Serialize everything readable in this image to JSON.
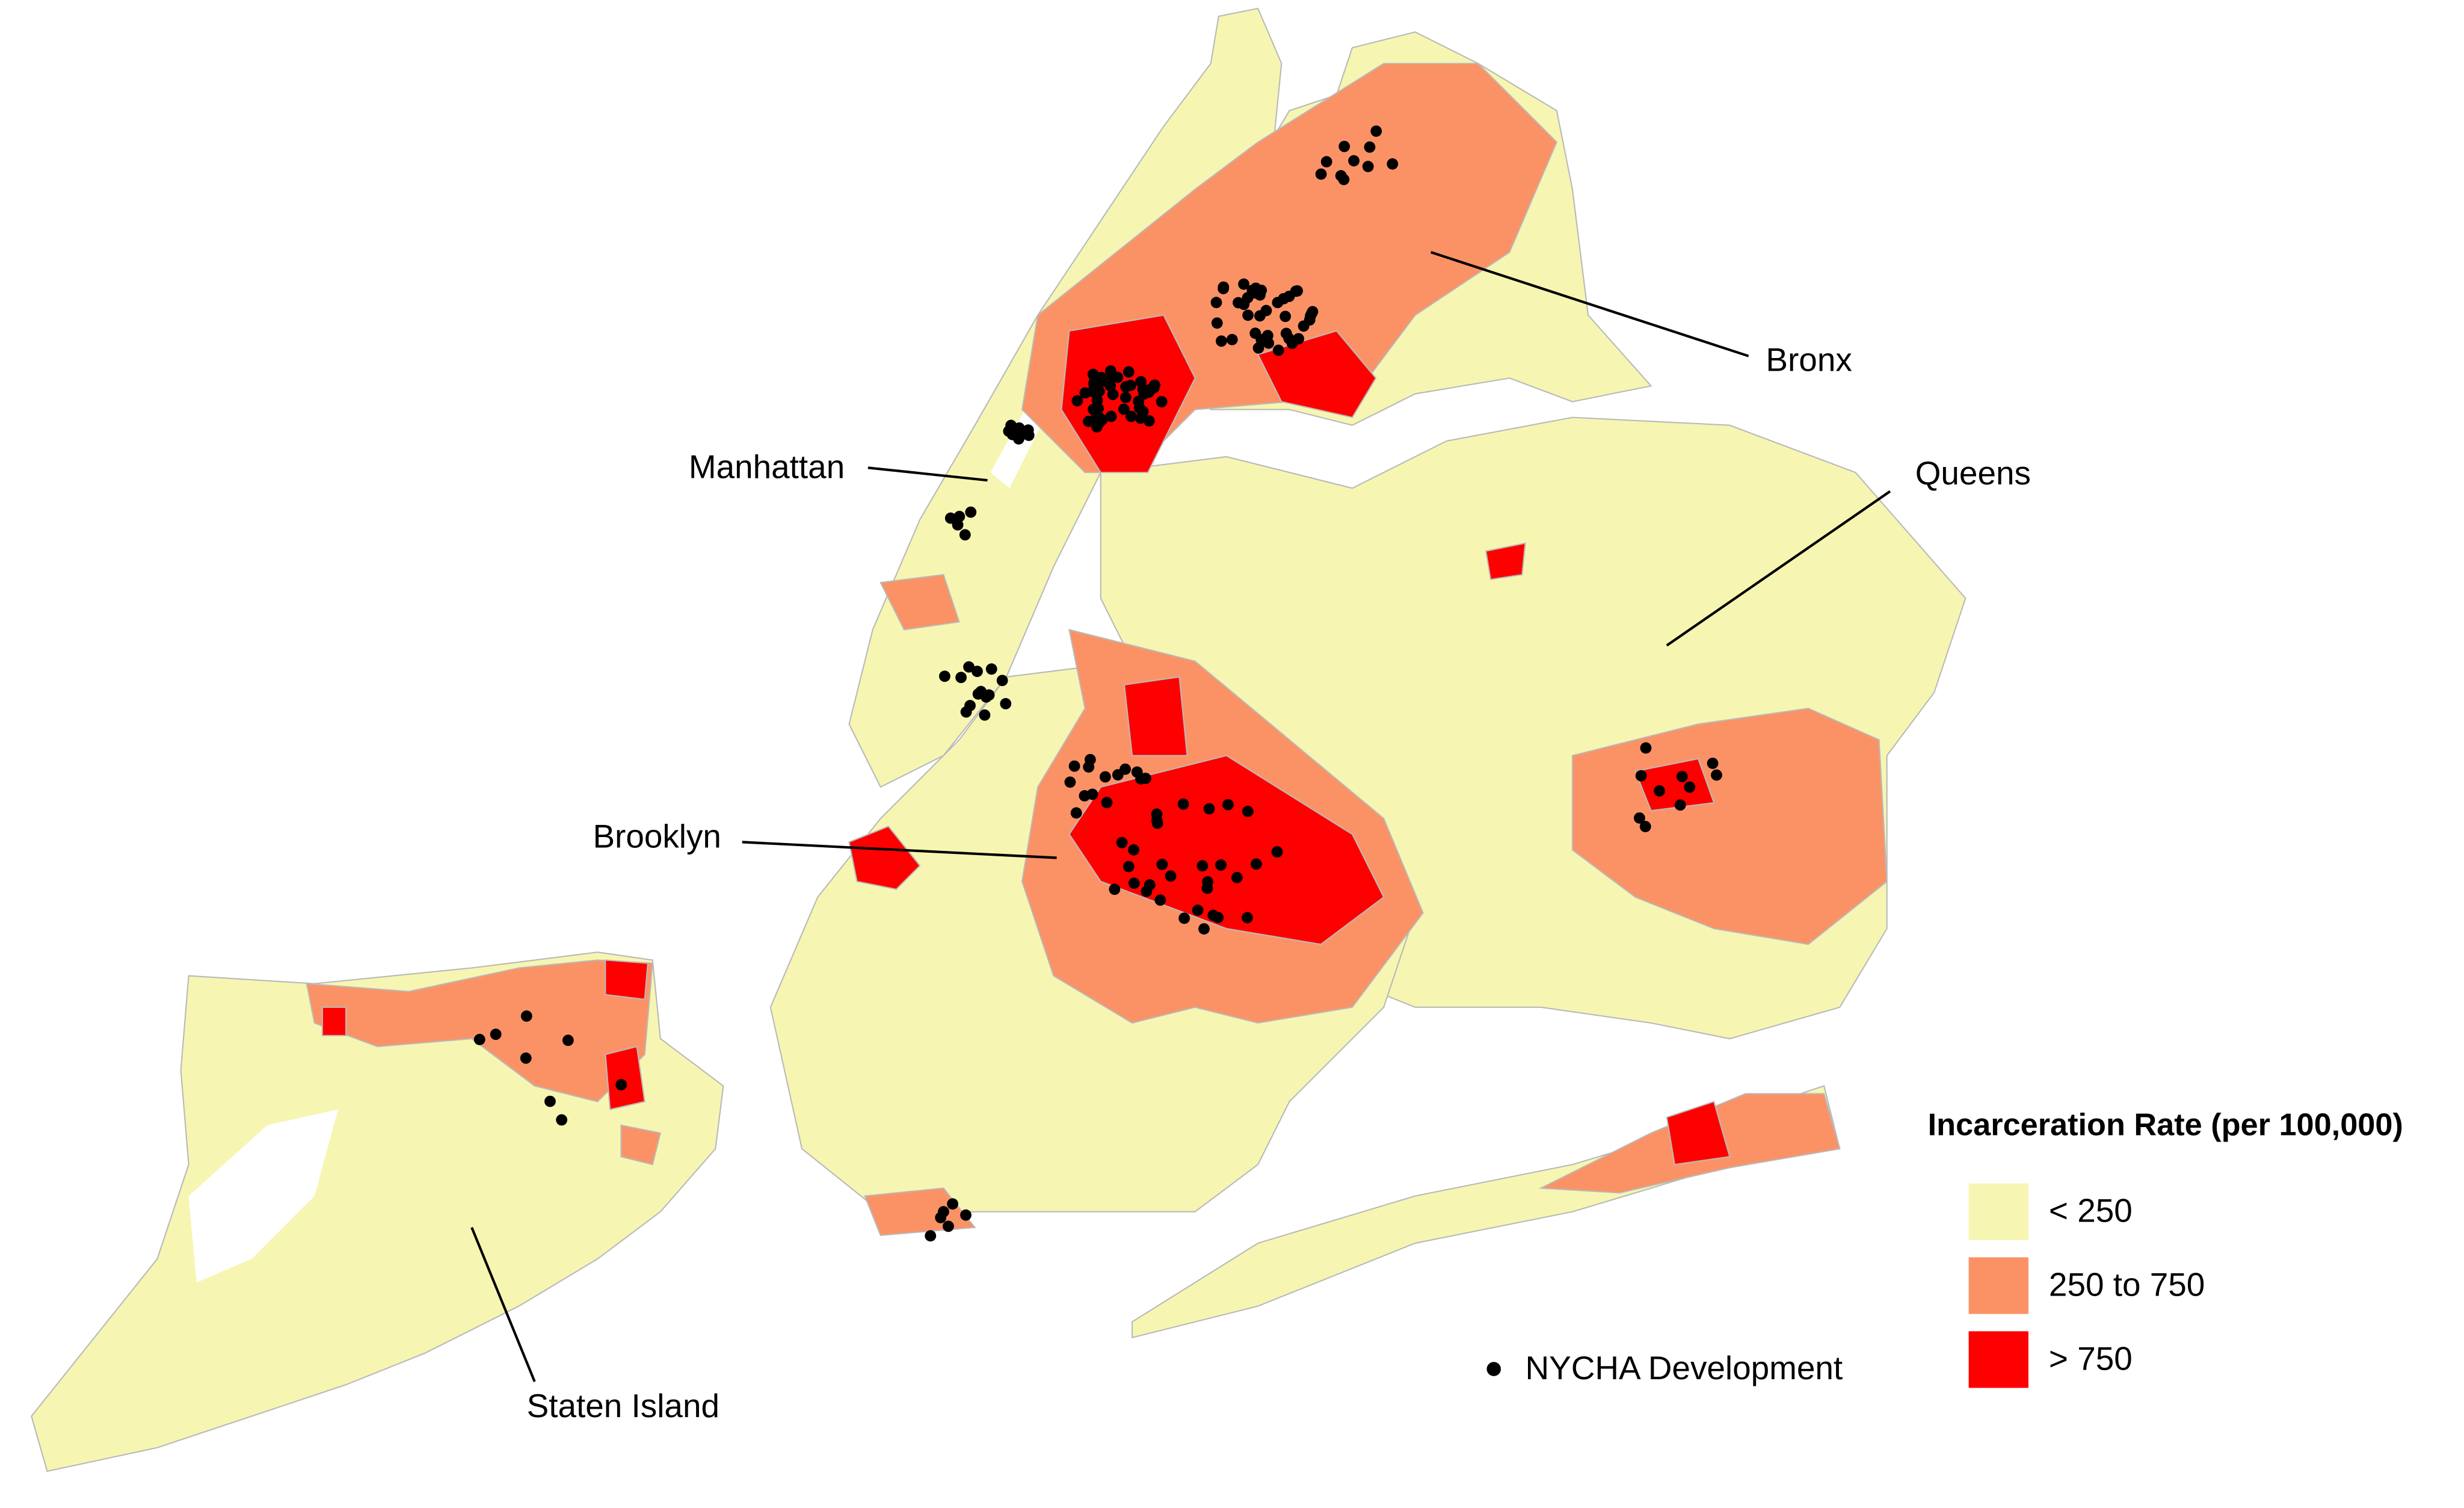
{
  "labels": {
    "bronx": "Bronx",
    "queens": "Queens",
    "manhattan": "Manhattan",
    "brooklyn": "Brooklyn",
    "staten_island": "Staten Island"
  },
  "legend": {
    "title": "Incarceration Rate (per 100,000)",
    "items": [
      {
        "label": "< 250",
        "color": "#f6f6b2"
      },
      {
        "label": "250 to 750",
        "color": "#fb9266"
      },
      {
        "label": "> 750",
        "color": "#ff0000"
      }
    ],
    "point_label": "NYCHA Development"
  }
}
